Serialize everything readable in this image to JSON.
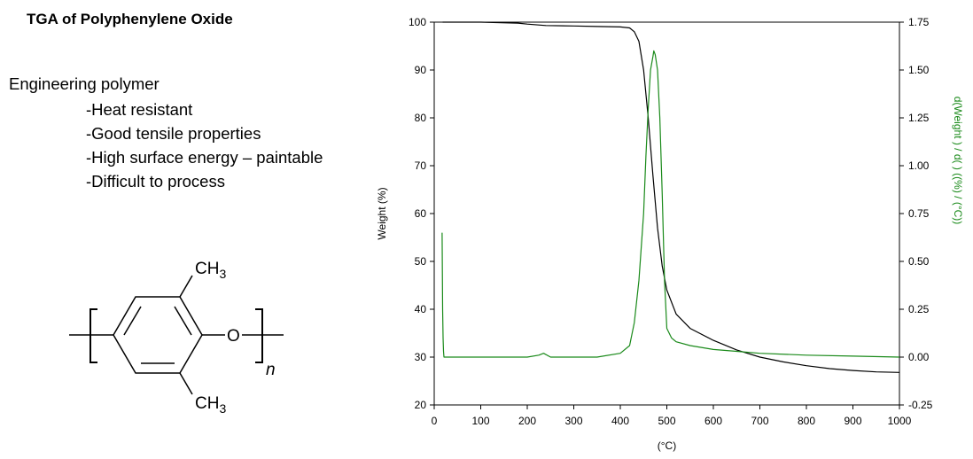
{
  "slide": {
    "title": "TGA of Polyphenylene Oxide",
    "subhead": "Engineering polymer",
    "bullets": [
      "-Heat resistant",
      "-Good tensile properties",
      "-High surface energy – paintable",
      "-Difficult to process"
    ]
  },
  "structure": {
    "ch3_top_main": "CH",
    "ch3_top_sub": "3",
    "ch3_bottom_main": "CH",
    "ch3_bottom_sub": "3",
    "oxygen": "O",
    "repeat": "n"
  },
  "chart_data": {
    "type": "line",
    "title": "",
    "xlabel": "(°C)",
    "ylabel": "Weight  (%)",
    "y2label": "d(Weight ) / d(   )  ((%) / (°C))",
    "xlim": [
      0,
      1000
    ],
    "ylim": [
      20,
      100
    ],
    "y2lim": [
      -0.25,
      1.75
    ],
    "x_ticks": [
      "0",
      "100",
      "200",
      "300",
      "400",
      "500",
      "600",
      "700",
      "800",
      "900",
      "1000"
    ],
    "y_ticks": [
      "20",
      "30",
      "40",
      "50",
      "60",
      "70",
      "80",
      "90",
      "100"
    ],
    "y2_ticks": [
      "-0.25",
      "0.00",
      "0.25",
      "0.50",
      "0.75",
      "1.00",
      "1.25",
      "1.50",
      "1.75"
    ],
    "grid": false,
    "colors": {
      "weight": "#000000",
      "derivative": "#1a8a1a",
      "axis": "#000000"
    },
    "series": [
      {
        "axis": "left",
        "color": "#000000",
        "x": [
          18,
          100,
          180,
          200,
          240,
          300,
          350,
          400,
          420,
          430,
          440,
          450,
          460,
          470,
          480,
          490,
          500,
          520,
          550,
          600,
          650,
          700,
          750,
          800,
          850,
          900,
          950,
          1000
        ],
        "values": [
          100,
          100,
          99.8,
          99.6,
          99.3,
          99.2,
          99.1,
          99.0,
          98.8,
          98.0,
          96.0,
          90.0,
          80.0,
          68.0,
          57.0,
          49.0,
          44.0,
          39.0,
          36.0,
          33.5,
          31.5,
          30.0,
          29.0,
          28.2,
          27.6,
          27.2,
          26.9,
          26.8
        ]
      },
      {
        "axis": "right",
        "color": "#1a8a1a",
        "x": [
          17,
          18,
          19,
          20,
          21,
          25,
          50,
          100,
          150,
          200,
          225,
          235,
          250,
          300,
          350,
          400,
          420,
          430,
          440,
          450,
          455,
          460,
          465,
          470,
          472,
          475,
          480,
          485,
          490,
          495,
          500,
          510,
          520,
          550,
          600,
          650,
          700,
          800,
          900,
          1000
        ],
        "values": [
          0.65,
          0.25,
          0.1,
          0.03,
          0.0,
          0.0,
          0.0,
          0.0,
          0.0,
          0.0,
          0.01,
          0.02,
          0.0,
          0.0,
          0.0,
          0.02,
          0.06,
          0.18,
          0.4,
          0.75,
          1.05,
          1.3,
          1.5,
          1.57,
          1.6,
          1.58,
          1.5,
          1.25,
          0.85,
          0.4,
          0.15,
          0.1,
          0.08,
          0.06,
          0.04,
          0.03,
          0.02,
          0.01,
          0.005,
          0.0
        ]
      }
    ]
  }
}
